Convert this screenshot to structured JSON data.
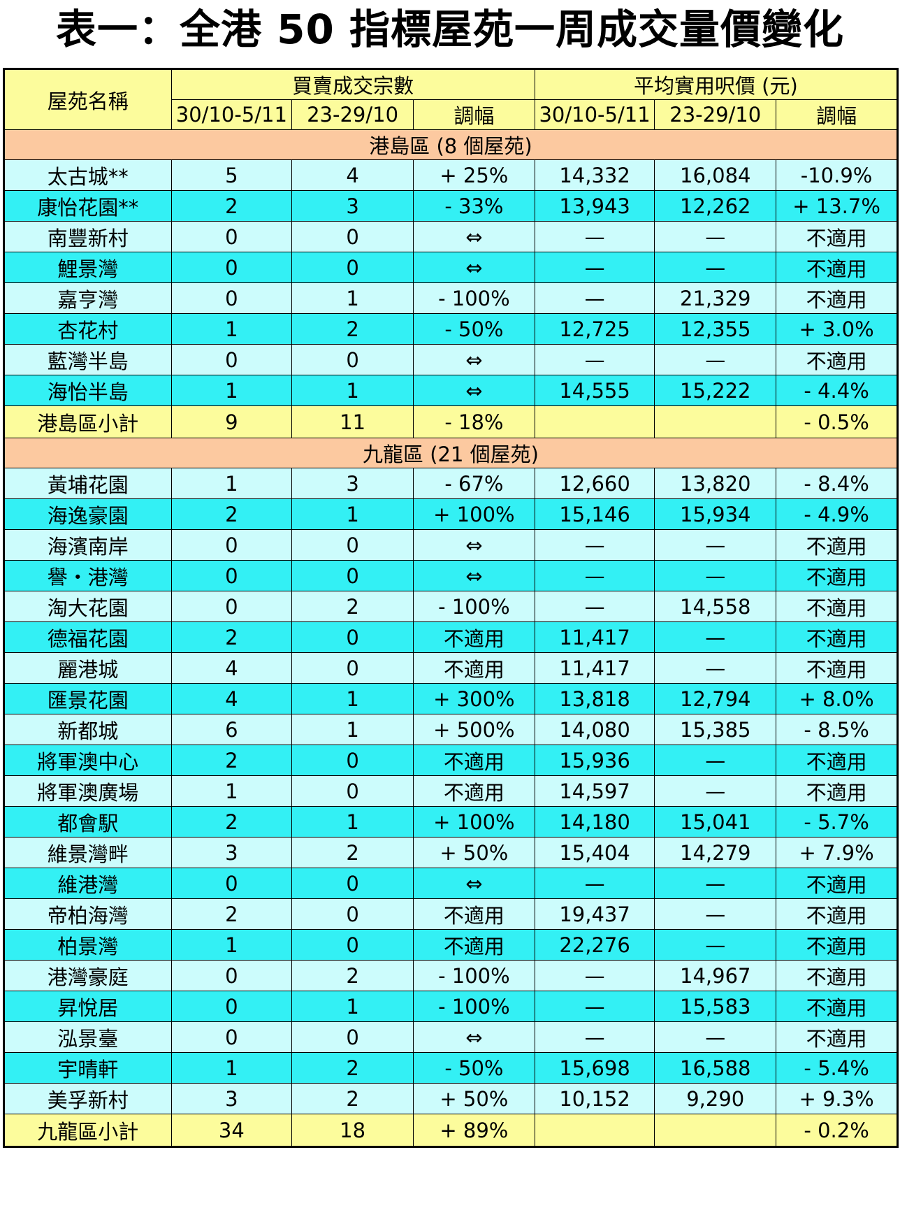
{
  "title": "表一：全港 50 指標屋苑一周成交量價變化",
  "header": {
    "estate": "屋苑名稱",
    "txn_group": "買賣成交宗數",
    "price_group": "平均實用呎價 (元)",
    "week_cur": "30/10-5/11",
    "week_prev": "23-29/10",
    "change": "調幅"
  },
  "sections": [
    {
      "title": "港島區 (8 個屋苑)",
      "rows": [
        [
          "太古城**",
          "5",
          "4",
          "+ 25%",
          "14,332",
          "16,084",
          "-10.9%"
        ],
        [
          "康怡花園**",
          "2",
          "3",
          "- 33%",
          "13,943",
          "12,262",
          "+ 13.7%"
        ],
        [
          "南豐新村",
          "0",
          "0",
          "⇔",
          "—",
          "—",
          "不適用"
        ],
        [
          "鯉景灣",
          "0",
          "0",
          "⇔",
          "—",
          "—",
          "不適用"
        ],
        [
          "嘉亨灣",
          "0",
          "1",
          "- 100%",
          "—",
          "21,329",
          "不適用"
        ],
        [
          "杏花村",
          "1",
          "2",
          "- 50%",
          "12,725",
          "12,355",
          "+ 3.0%"
        ],
        [
          "藍灣半島",
          "0",
          "0",
          "⇔",
          "—",
          "—",
          "不適用"
        ],
        [
          "海怡半島",
          "1",
          "1",
          "⇔",
          "14,555",
          "15,222",
          "- 4.4%"
        ]
      ],
      "subtotal": [
        "港島區小計",
        "9",
        "11",
        "- 18%",
        "",
        "",
        "- 0.5%"
      ]
    },
    {
      "title": "九龍區 (21 個屋苑)",
      "rows": [
        [
          "黃埔花園",
          "1",
          "3",
          "- 67%",
          "12,660",
          "13,820",
          "- 8.4%"
        ],
        [
          "海逸豪園",
          "2",
          "1",
          "+ 100%",
          "15,146",
          "15,934",
          "- 4.9%"
        ],
        [
          "海濱南岸",
          "0",
          "0",
          "⇔",
          "—",
          "—",
          "不適用"
        ],
        [
          "譽・港灣",
          "0",
          "0",
          "⇔",
          "—",
          "—",
          "不適用"
        ],
        [
          "淘大花園",
          "0",
          "2",
          "- 100%",
          "—",
          "14,558",
          "不適用"
        ],
        [
          "德福花園",
          "2",
          "0",
          "不適用",
          "11,417",
          "—",
          "不適用"
        ],
        [
          "麗港城",
          "4",
          "0",
          "不適用",
          "11,417",
          "—",
          "不適用"
        ],
        [
          "匯景花園",
          "4",
          "1",
          "+ 300%",
          "13,818",
          "12,794",
          "+ 8.0%"
        ],
        [
          "新都城",
          "6",
          "1",
          "+ 500%",
          "14,080",
          "15,385",
          "- 8.5%"
        ],
        [
          "將軍澳中心",
          "2",
          "0",
          "不適用",
          "15,936",
          "—",
          "不適用"
        ],
        [
          "將軍澳廣場",
          "1",
          "0",
          "不適用",
          "14,597",
          "—",
          "不適用"
        ],
        [
          "都會駅",
          "2",
          "1",
          "+ 100%",
          "14,180",
          "15,041",
          "- 5.7%"
        ],
        [
          "維景灣畔",
          "3",
          "2",
          "+ 50%",
          "15,404",
          "14,279",
          "+ 7.9%"
        ],
        [
          "維港灣",
          "0",
          "0",
          "⇔",
          "—",
          "—",
          "不適用"
        ],
        [
          "帝柏海灣",
          "2",
          "0",
          "不適用",
          "19,437",
          "—",
          "不適用"
        ],
        [
          "柏景灣",
          "1",
          "0",
          "不適用",
          "22,276",
          "—",
          "不適用"
        ],
        [
          "港灣豪庭",
          "0",
          "2",
          "- 100%",
          "—",
          "14,967",
          "不適用"
        ],
        [
          "昇悅居",
          "0",
          "1",
          "- 100%",
          "—",
          "15,583",
          "不適用"
        ],
        [
          "泓景臺",
          "0",
          "0",
          "⇔",
          "—",
          "—",
          "不適用"
        ],
        [
          "宇晴軒",
          "1",
          "2",
          "- 50%",
          "15,698",
          "16,588",
          "- 5.4%"
        ],
        [
          "美孚新村",
          "3",
          "2",
          "+ 50%",
          "10,152",
          "9,290",
          "+ 9.3%"
        ]
      ],
      "subtotal": [
        "九龍區小計",
        "34",
        "18",
        "+ 89%",
        "",
        "",
        "- 0.2%"
      ]
    }
  ],
  "colors": {
    "header_bg": "#fcfc9c",
    "section_bg": "#fcc9a0",
    "row_light": "#ccfcfc",
    "row_dark": "#33f0f4",
    "subtotal_bg": "#fcfc9c"
  }
}
